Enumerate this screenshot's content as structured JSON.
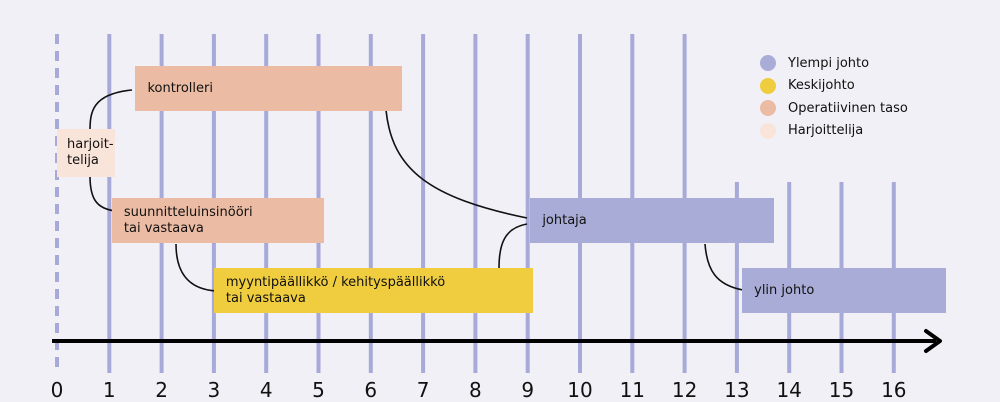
{
  "chart_data": {
    "type": "timeline",
    "x_ticks": [
      "0",
      "1",
      "2",
      "3",
      "4",
      "5",
      "6",
      "7",
      "8",
      "9",
      "10",
      "11",
      "12",
      "13",
      "14",
      "15",
      "16"
    ],
    "roles": [
      {
        "key": "trainee",
        "label": "harjoit-\ntelija",
        "level": "Harjoittelija",
        "start": 0,
        "end": 1.1
      },
      {
        "key": "controller",
        "label": "kontrolleri",
        "level": "Operatiivinen taso",
        "start": 1.5,
        "end": 6.6
      },
      {
        "key": "planner",
        "label": "suunnitteluinsinööri\ntai vastaava",
        "level": "Operatiivinen taso",
        "start": 1.05,
        "end": 5.1
      },
      {
        "key": "sales",
        "label": "myyntipäällikkö / kehityspäällikkö\ntai vastaava",
        "level": "Keskijohto",
        "start": 3.0,
        "end": 9.1
      },
      {
        "key": "director",
        "label": "johtaja",
        "level": "Ylempi johto",
        "start": 9.05,
        "end": 13.7
      },
      {
        "key": "top",
        "label": "ylin johto",
        "level": "Ylempi johto",
        "start": 13.1,
        "end": 17.0
      }
    ]
  },
  "legend": [
    {
      "label": "Ylempi johto",
      "color": "#a9acd6"
    },
    {
      "label": "Keskijohto",
      "color": "#f0cd3f"
    },
    {
      "label": "Operatiivinen taso",
      "color": "#ebbba3"
    },
    {
      "label": "Harjoittelija",
      "color": "#f9e4da"
    }
  ],
  "colors": {
    "gridline": "#a7a9d8",
    "axis": "#000000",
    "connector": "#111111"
  }
}
